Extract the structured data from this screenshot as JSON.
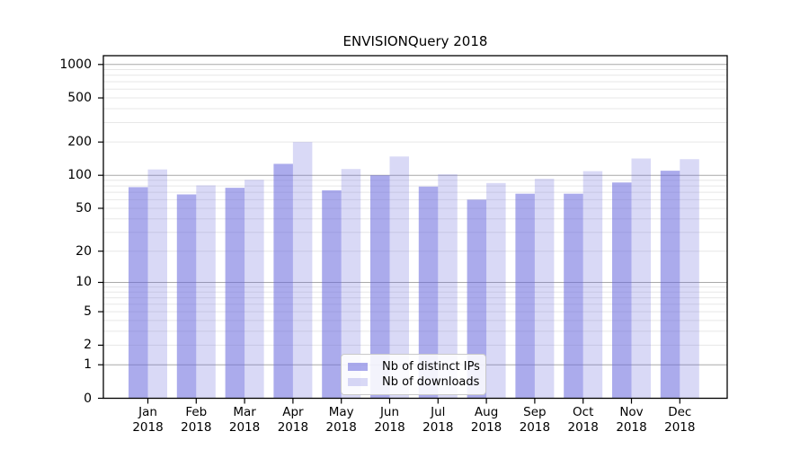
{
  "chart_data": {
    "type": "bar",
    "title": "ENVISIONQuery 2018",
    "categories": [
      "Jan 2018",
      "Feb 2018",
      "Mar 2018",
      "Apr 2018",
      "May 2018",
      "Jun 2018",
      "Jul 2018",
      "Aug 2018",
      "Sep 2018",
      "Oct 2018",
      "Nov 2018",
      "Dec 2018"
    ],
    "series": [
      {
        "name": "Nb of distinct IPs",
        "color": "rgba(102,102,221,0.55)",
        "values": [
          78,
          67,
          77,
          127,
          73,
          100,
          79,
          60,
          68,
          68,
          86,
          110
        ]
      },
      {
        "name": "Nb of downloads",
        "color": "rgba(102,102,221,0.25)",
        "values": [
          113,
          81,
          91,
          200,
          114,
          148,
          102,
          85,
          93,
          109,
          142,
          140
        ]
      }
    ],
    "xlabel": "",
    "ylabel": "",
    "yscale": "symlog",
    "yticks": [
      0,
      1,
      2,
      5,
      10,
      20,
      50,
      100,
      200,
      500,
      1000
    ],
    "ylim": [
      0,
      1200
    ],
    "grid": "horizontal major and minor gridlines",
    "legend_position": "lower center"
  },
  "colors": {
    "background": "#ffffff",
    "bar_distinct_ips": "rgba(102,102,221,0.55)",
    "bar_downloads": "rgba(102,102,221,0.25)",
    "grid_major": "#a9a9a9",
    "grid_minor": "#e7e7e7",
    "axis": "#000000",
    "legend_border": "#c9c9c9"
  }
}
